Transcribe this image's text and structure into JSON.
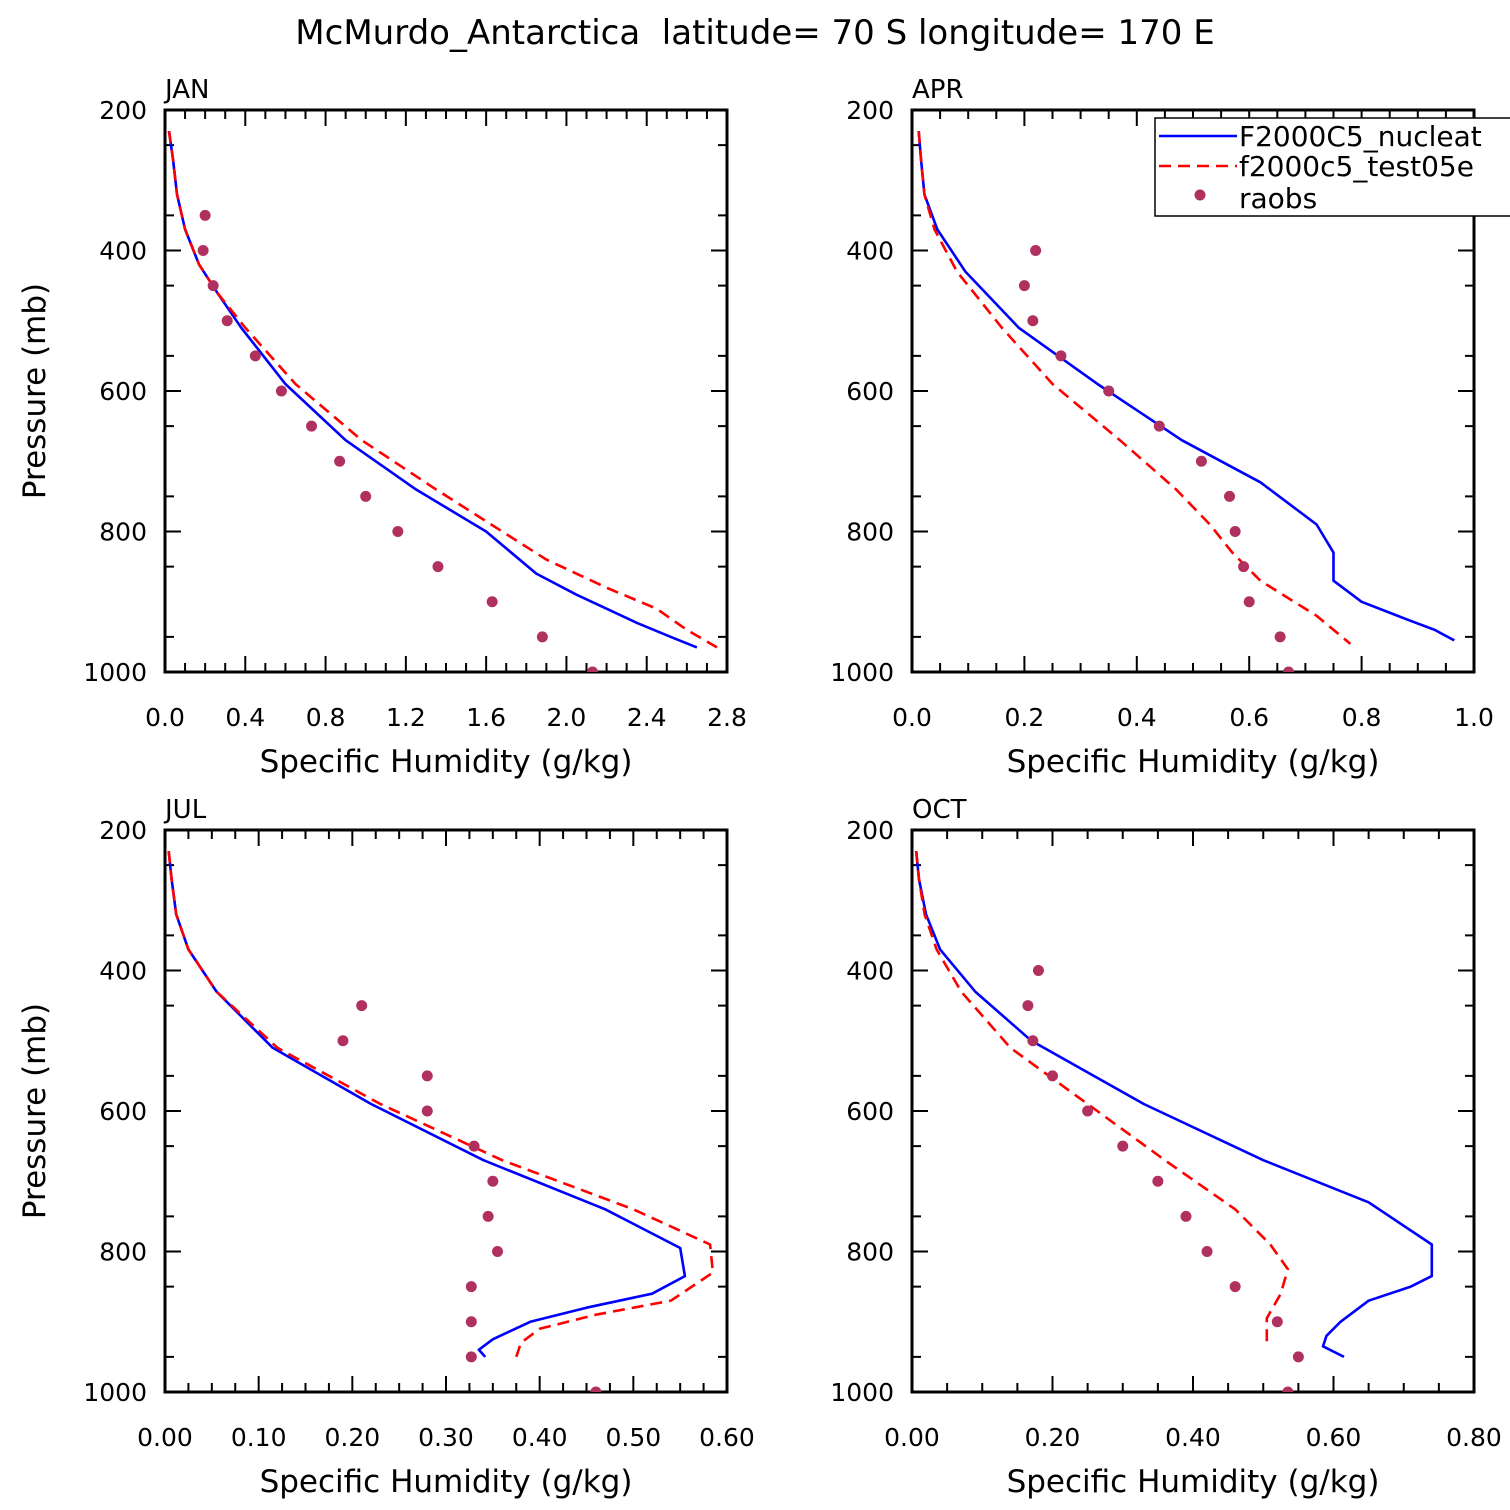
{
  "title": "McMurdo_Antarctica  latitude= 70 S longitude= 170 E",
  "colors": {
    "model_a": "#0000ff",
    "model_b": "#ff0000",
    "obs": "#b03060",
    "axis": "#000000"
  },
  "legend": {
    "placement": "top-right",
    "entries": [
      "F2000C5_nucleat",
      "f2000c5_test05e",
      "raobs"
    ]
  },
  "chart_data": [
    {
      "type": "line",
      "panel": "JAN",
      "xlabel": "Specific Humidity (g/kg)",
      "ylabel": "Pressure (mb)",
      "xlim": [
        0,
        2.8
      ],
      "ylim": [
        1000,
        200
      ],
      "xticks": [
        "0.0",
        "0.4",
        "0.8",
        "1.2",
        "1.6",
        "2.0",
        "2.4",
        "2.8"
      ],
      "yticks": [
        "200",
        "400",
        "600",
        "800",
        "1000"
      ],
      "series": [
        {
          "name": "F2000C5_nucleat",
          "style": "solid",
          "points": [
            [
              0.02,
              230
            ],
            [
              0.04,
              270
            ],
            [
              0.06,
              320
            ],
            [
              0.1,
              370
            ],
            [
              0.17,
              420
            ],
            [
              0.26,
              460
            ],
            [
              0.38,
              510
            ],
            [
              0.6,
              590
            ],
            [
              0.9,
              670
            ],
            [
              1.25,
              740
            ],
            [
              1.6,
              800
            ],
            [
              1.85,
              860
            ],
            [
              2.05,
              890
            ],
            [
              2.35,
              930
            ],
            [
              2.52,
              950
            ],
            [
              2.65,
              965
            ]
          ]
        },
        {
          "name": "f2000c5_test05e",
          "style": "dashed",
          "points": [
            [
              0.02,
              230
            ],
            [
              0.04,
              270
            ],
            [
              0.06,
              320
            ],
            [
              0.1,
              370
            ],
            [
              0.17,
              420
            ],
            [
              0.26,
              460
            ],
            [
              0.4,
              510
            ],
            [
              0.65,
              590
            ],
            [
              0.98,
              670
            ],
            [
              1.35,
              740
            ],
            [
              1.68,
              800
            ],
            [
              1.9,
              840
            ],
            [
              2.2,
              880
            ],
            [
              2.45,
              910
            ],
            [
              2.6,
              940
            ],
            [
              2.75,
              965
            ]
          ]
        },
        {
          "name": "raobs",
          "style": "markers",
          "points": [
            [
              0.2,
              350
            ],
            [
              0.19,
              400
            ],
            [
              0.24,
              450
            ],
            [
              0.31,
              500
            ],
            [
              0.45,
              550
            ],
            [
              0.58,
              600
            ],
            [
              0.73,
              650
            ],
            [
              0.87,
              700
            ],
            [
              1.0,
              750
            ],
            [
              1.16,
              800
            ],
            [
              1.36,
              850
            ],
            [
              1.63,
              900
            ],
            [
              1.88,
              950
            ],
            [
              2.13,
              1000
            ]
          ]
        }
      ]
    },
    {
      "type": "line",
      "panel": "APR",
      "xlabel": "Specific Humidity (g/kg)",
      "ylabel": "",
      "xlim": [
        0,
        1.0
      ],
      "ylim": [
        1000,
        200
      ],
      "xticks": [
        "0.0",
        "0.2",
        "0.4",
        "0.6",
        "0.8",
        "1.0"
      ],
      "yticks": [
        "200",
        "400",
        "600",
        "800",
        "1000"
      ],
      "series": [
        {
          "name": "F2000C5_nucleat",
          "style": "solid",
          "points": [
            [
              0.012,
              230
            ],
            [
              0.016,
              270
            ],
            [
              0.022,
              320
            ],
            [
              0.045,
              370
            ],
            [
              0.095,
              430
            ],
            [
              0.19,
              510
            ],
            [
              0.33,
              590
            ],
            [
              0.48,
              670
            ],
            [
              0.62,
              730
            ],
            [
              0.72,
              790
            ],
            [
              0.75,
              830
            ],
            [
              0.75,
              870
            ],
            [
              0.8,
              900
            ],
            [
              0.88,
              925
            ],
            [
              0.93,
              940
            ],
            [
              0.965,
              955
            ]
          ]
        },
        {
          "name": "f2000c5_test05e",
          "style": "dashed",
          "points": [
            [
              0.012,
              230
            ],
            [
              0.016,
              270
            ],
            [
              0.022,
              320
            ],
            [
              0.04,
              370
            ],
            [
              0.08,
              430
            ],
            [
              0.16,
              510
            ],
            [
              0.25,
              590
            ],
            [
              0.37,
              670
            ],
            [
              0.47,
              740
            ],
            [
              0.53,
              790
            ],
            [
              0.57,
              830
            ],
            [
              0.62,
              870
            ],
            [
              0.72,
              920
            ],
            [
              0.78,
              960
            ]
          ]
        },
        {
          "name": "raobs",
          "style": "markers",
          "points": [
            [
              0.22,
              400
            ],
            [
              0.2,
              450
            ],
            [
              0.215,
              500
            ],
            [
              0.265,
              550
            ],
            [
              0.35,
              600
            ],
            [
              0.44,
              650
            ],
            [
              0.515,
              700
            ],
            [
              0.565,
              750
            ],
            [
              0.575,
              800
            ],
            [
              0.59,
              850
            ],
            [
              0.6,
              900
            ],
            [
              0.655,
              950
            ],
            [
              0.67,
              1000
            ]
          ]
        }
      ]
    },
    {
      "type": "line",
      "panel": "JUL",
      "xlabel": "Specific Humidity (g/kg)",
      "ylabel": "Pressure (mb)",
      "xlim": [
        0,
        0.6
      ],
      "ylim": [
        1000,
        200
      ],
      "xticks": [
        "0.00",
        "0.10",
        "0.20",
        "0.30",
        "0.40",
        "0.50",
        "0.60"
      ],
      "yticks": [
        "200",
        "400",
        "600",
        "800",
        "1000"
      ],
      "series": [
        {
          "name": "F2000C5_nucleat",
          "style": "solid",
          "points": [
            [
              0.004,
              230
            ],
            [
              0.007,
              270
            ],
            [
              0.012,
              320
            ],
            [
              0.025,
              370
            ],
            [
              0.055,
              430
            ],
            [
              0.115,
              510
            ],
            [
              0.22,
              590
            ],
            [
              0.34,
              670
            ],
            [
              0.47,
              740
            ],
            [
              0.55,
              795
            ],
            [
              0.555,
              835
            ],
            [
              0.52,
              860
            ],
            [
              0.45,
              880
            ],
            [
              0.39,
              900
            ],
            [
              0.35,
              925
            ],
            [
              0.335,
              940
            ],
            [
              0.342,
              950
            ]
          ]
        },
        {
          "name": "f2000c5_test05e",
          "style": "dashed",
          "points": [
            [
              0.004,
              230
            ],
            [
              0.007,
              270
            ],
            [
              0.012,
              320
            ],
            [
              0.025,
              370
            ],
            [
              0.055,
              430
            ],
            [
              0.12,
              510
            ],
            [
              0.23,
              590
            ],
            [
              0.36,
              670
            ],
            [
              0.5,
              740
            ],
            [
              0.582,
              790
            ],
            [
              0.585,
              830
            ],
            [
              0.54,
              870
            ],
            [
              0.46,
              890
            ],
            [
              0.4,
              910
            ],
            [
              0.38,
              930
            ],
            [
              0.375,
              950
            ]
          ]
        },
        {
          "name": "raobs",
          "style": "markers",
          "points": [
            [
              0.21,
              450
            ],
            [
              0.19,
              500
            ],
            [
              0.28,
              550
            ],
            [
              0.28,
              600
            ],
            [
              0.33,
              650
            ],
            [
              0.35,
              700
            ],
            [
              0.345,
              750
            ],
            [
              0.355,
              800
            ],
            [
              0.327,
              850
            ],
            [
              0.327,
              900
            ],
            [
              0.327,
              950
            ],
            [
              0.46,
              1000
            ]
          ]
        }
      ]
    },
    {
      "type": "line",
      "panel": "OCT",
      "xlabel": "Specific Humidity (g/kg)",
      "ylabel": "",
      "xlim": [
        0,
        0.8
      ],
      "ylim": [
        1000,
        200
      ],
      "xticks": [
        "0.00",
        "0.20",
        "0.40",
        "0.60",
        "0.80"
      ],
      "yticks": [
        "200",
        "400",
        "600",
        "800",
        "1000"
      ],
      "series": [
        {
          "name": "F2000C5_nucleat",
          "style": "solid",
          "points": [
            [
              0.006,
              230
            ],
            [
              0.01,
              270
            ],
            [
              0.02,
              320
            ],
            [
              0.04,
              370
            ],
            [
              0.09,
              430
            ],
            [
              0.17,
              500
            ],
            [
              0.33,
              590
            ],
            [
              0.5,
              670
            ],
            [
              0.65,
              730
            ],
            [
              0.74,
              790
            ],
            [
              0.74,
              835
            ],
            [
              0.71,
              850
            ],
            [
              0.65,
              870
            ],
            [
              0.61,
              900
            ],
            [
              0.59,
              920
            ],
            [
              0.585,
              935
            ],
            [
              0.615,
              950
            ]
          ]
        },
        {
          "name": "f2000c5_test05e",
          "style": "dashed",
          "points": [
            [
              0.006,
              230
            ],
            [
              0.01,
              270
            ],
            [
              0.018,
              320
            ],
            [
              0.035,
              370
            ],
            [
              0.07,
              430
            ],
            [
              0.14,
              510
            ],
            [
              0.25,
              590
            ],
            [
              0.36,
              670
            ],
            [
              0.46,
              740
            ],
            [
              0.51,
              790
            ],
            [
              0.535,
              825
            ],
            [
              0.525,
              860
            ],
            [
              0.505,
              895
            ],
            [
              0.505,
              935
            ]
          ]
        },
        {
          "name": "raobs",
          "style": "markers",
          "points": [
            [
              0.18,
              400
            ],
            [
              0.165,
              450
            ],
            [
              0.172,
              500
            ],
            [
              0.2,
              550
            ],
            [
              0.25,
              600
            ],
            [
              0.3,
              650
            ],
            [
              0.35,
              700
            ],
            [
              0.39,
              750
            ],
            [
              0.42,
              800
            ],
            [
              0.46,
              850
            ],
            [
              0.52,
              900
            ],
            [
              0.55,
              950
            ],
            [
              0.535,
              1000
            ]
          ]
        }
      ]
    }
  ]
}
